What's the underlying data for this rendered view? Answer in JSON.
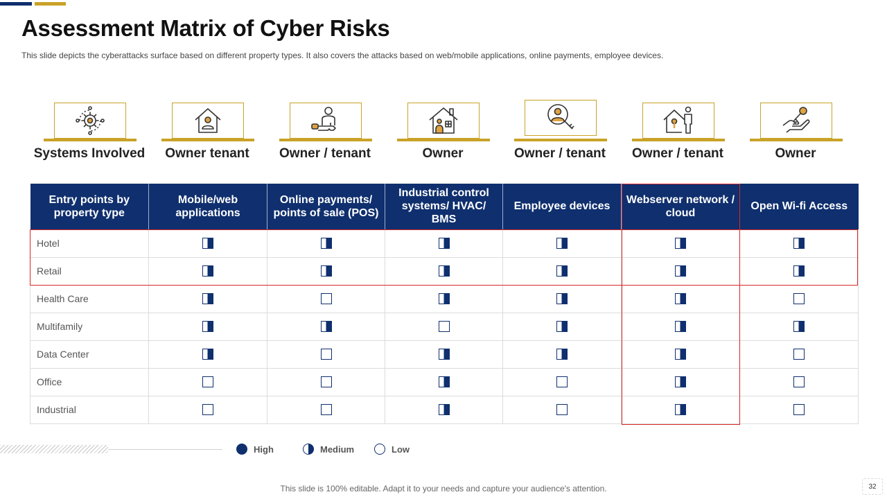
{
  "slide": {
    "title": "Assessment Matrix of Cyber Risks",
    "subtitle": "This slide depicts the cyberattacks surface based on different property types. It also covers the attacks based on web/mobile applications, online payments, employee devices.",
    "footer": "This slide is 100% editable. Adapt it to your needs and capture your audience's attention.",
    "page_number": "32"
  },
  "icons": [
    {
      "icon": "gear-network-icon",
      "label": "Systems Involved"
    },
    {
      "icon": "house-person-icon",
      "label": "Owner tenant"
    },
    {
      "icon": "person-key-icon",
      "label": "Owner / tenant"
    },
    {
      "icon": "house-family-icon",
      "label": "Owner"
    },
    {
      "icon": "user-magnifier-key-icon",
      "label": "Owner / tenant"
    },
    {
      "icon": "house-lock-person-icon",
      "label": "Owner / tenant"
    },
    {
      "icon": "hand-key-icon",
      "label": "Owner"
    }
  ],
  "table": {
    "headers": [
      "Entry points by property type",
      "Mobile/web applications",
      "Online payments/ points of sale (POS)",
      "Industrial control systems/ HVAC/ BMS",
      "Employee devices",
      "Webserver network / cloud",
      "Open Wi-fi Access"
    ],
    "rows": [
      {
        "label": "Hotel",
        "ratings": [
          "medium",
          "medium",
          "medium",
          "medium",
          "medium",
          "medium"
        ]
      },
      {
        "label": "Retail",
        "ratings": [
          "medium",
          "medium",
          "medium",
          "medium",
          "medium",
          "medium"
        ]
      },
      {
        "label": "Health Care",
        "ratings": [
          "medium",
          "low",
          "medium",
          "medium",
          "medium",
          "low"
        ]
      },
      {
        "label": "Multifamily",
        "ratings": [
          "medium",
          "medium",
          "low",
          "medium",
          "medium",
          "medium"
        ]
      },
      {
        "label": "Data Center",
        "ratings": [
          "medium",
          "low",
          "medium",
          "medium",
          "medium",
          "low"
        ]
      },
      {
        "label": "Office",
        "ratings": [
          "low",
          "low",
          "medium",
          "low",
          "medium",
          "low"
        ]
      },
      {
        "label": "Industrial",
        "ratings": [
          "low",
          "low",
          "medium",
          "low",
          "medium",
          "low"
        ]
      }
    ]
  },
  "legend": {
    "high": "High",
    "medium": "Medium",
    "low": "Low"
  },
  "colors": {
    "navy": "#0f2f6e",
    "gold": "#c9a227",
    "highlight_red": "#d62828"
  }
}
